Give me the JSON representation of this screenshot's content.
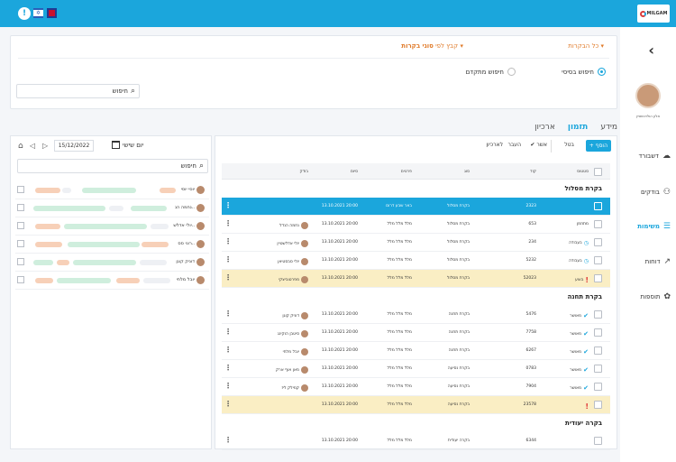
{
  "topbar": {
    "alert_icon": "!",
    "flag_il_icon": "✡",
    "flag_uk_icon": "uk-flag",
    "logo": "MILGAM"
  },
  "sidebar": {
    "user_name": "אלון הולדנשטיין",
    "items": [
      {
        "label": "דשבורד",
        "icon": "☁"
      },
      {
        "label": "בודקים",
        "icon": "⚇"
      },
      {
        "label": "משימות",
        "icon": "☰"
      },
      {
        "label": "דוחות",
        "icon": "↗"
      },
      {
        "label": "תוספות",
        "icon": "✿"
      }
    ]
  },
  "filters": {
    "all_visits": "כל הבקרות ▾",
    "group_prefix": "קבץ לפי ",
    "group_value": "סוגי בקרות ▾",
    "basic_search": "חיפוש בסיסי",
    "advanced_search": "חיפוש מתקדם",
    "search_placeholder": "חיפוש"
  },
  "tabs": [
    {
      "label": "מידע"
    },
    {
      "label": "תזמון"
    },
    {
      "label": "ארכיון"
    }
  ],
  "toolbar": {
    "add": "+ הוסף",
    "cancel": "בטל",
    "approve": "✔ אשר",
    "transfer": "העבר",
    "archive": "לארכיון"
  },
  "columns": {
    "status": "סטטוס",
    "code": "קוד",
    "type": "סוג",
    "details": "פרטים",
    "end": "סיום",
    "inspector": "בודק"
  },
  "groups": [
    {
      "title": "בקרת מסלול",
      "rows": [
        {
          "status": "",
          "code": "2323",
          "type": "בקרת מסלול",
          "details": "באר שבע דרום",
          "end": "13.10.2021 20:00",
          "inspector": ""
        },
        {
          "status": "מתוזמן",
          "code": "653",
          "type": "בקרת מסלול",
          "details": "מלל מלל מלל",
          "end": "13.10.2021 20:00",
          "inspector": "נחמה הנדל"
        },
        {
          "status": "בעבודה",
          "code": "234",
          "type": "בקרת מסלול",
          "details": "מלל מלל מלל",
          "end": "13.10.2021 20:00",
          "inspector": "יולי אדלשטיין"
        },
        {
          "status": "בעבודה",
          "code": "5232",
          "type": "בקרת מסלול",
          "details": "מלל מלל מלל",
          "end": "13.10.2021 20:00",
          "inspector": "יולי סבסטיאן"
        },
        {
          "status": "בוצע",
          "code": "52023",
          "type": "בקרת מסלול",
          "details": "מלל מלל מלל",
          "end": "13.10.2021 20:00",
          "inspector": "מפרטוביצקי"
        }
      ]
    },
    {
      "title": "בקרת תחנה",
      "rows": [
        {
          "status": "מאושר",
          "code": "5476",
          "type": "בקרת תחנה",
          "details": "מלל מלל מלל",
          "end": "13.10.2021 20:00",
          "inspector": "דוניק קוגן"
        },
        {
          "status": "מאושר",
          "code": "7758",
          "type": "בקרת תחנה",
          "details": "מלל מלל מלל",
          "end": "13.10.2021 20:00",
          "inspector": "סיטבן הוקינג"
        },
        {
          "status": "מאושר",
          "code": "6267",
          "type": "בקרת תחנה",
          "details": "מלל מלל מלל",
          "end": "13.10.2021 20:00",
          "inspector": "יובל מלחי"
        },
        {
          "status": "מאושר",
          "code": "0783",
          "type": "בקרת נסיעה",
          "details": "מלל מלל מלל",
          "end": "13.10.2021 20:00",
          "inspector": "מאן אוף ארק"
        },
        {
          "status": "מאושר",
          "code": "7904",
          "type": "בקרת נסיעה",
          "details": "מלל מלל מלל",
          "end": "13.10.2021 20:00",
          "inspector": "קמילק ליז"
        },
        {
          "status": "",
          "code": "23578",
          "type": "בקרת נסיעה",
          "details": "מלל מלל מלל",
          "end": "13.10.2021 20:00",
          "inspector": ""
        }
      ]
    },
    {
      "title": "בקרה יעודית",
      "rows": [
        {
          "status": "",
          "code": "6344",
          "type": "בקרה יעודית",
          "details": "מלל מלל מלל",
          "end": "13.10.2021 20:00",
          "inspector": ""
        }
      ]
    }
  ],
  "schedule": {
    "date": "15/12/2022",
    "day": "יום שישי",
    "search_placeholder": "חיפוש",
    "people": [
      {
        "name": "יוסי יוסי"
      },
      {
        "name": "נחמה הנ.."
      },
      {
        "name": "יולי אדלש.."
      },
      {
        "name": "רוני סס.."
      },
      {
        "name": "דוניק קוגן"
      },
      {
        "name": "יובל מלחי"
      }
    ]
  }
}
